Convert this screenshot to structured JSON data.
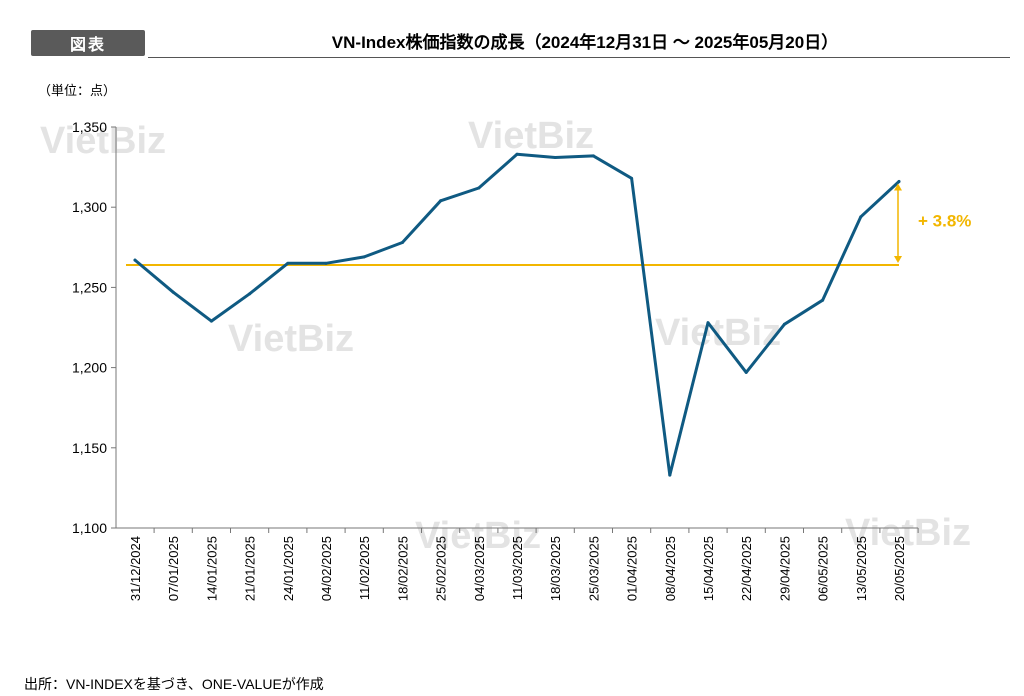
{
  "header": {
    "tag_label": "図表",
    "title": "VN-Index株価指数の成長（2024年12月31日 ～ 2025年05月20日）"
  },
  "unit_label": "（単位：点）",
  "source_label": "出所：VN-INDEXを基づき、ONE-VALUEが作成",
  "watermark_text": "VietBiz",
  "colors": {
    "line": "#0f5a82",
    "reference": "#f2b600",
    "tag_bg": "#5a5a5a"
  },
  "chart_data": {
    "type": "line",
    "title": "VN-Index株価指数の成長（2024年12月31日 ～ 2025年05月20日）",
    "ylabel": "（単位：点）",
    "xlabel": "",
    "ylim": [
      1100,
      1350
    ],
    "yticks": [
      1100,
      1150,
      1200,
      1250,
      1300,
      1350
    ],
    "ytick_labels": [
      "1,100",
      "1,150",
      "1,200",
      "1,250",
      "1,300",
      "1,350"
    ],
    "grid": false,
    "categories": [
      "31/12/2024",
      "07/01/2025",
      "14/01/2025",
      "21/01/2025",
      "24/01/2025",
      "04/02/2025",
      "11/02/2025",
      "18/02/2025",
      "25/02/2025",
      "04/03/2025",
      "11/03/2025",
      "18/03/2025",
      "25/03/2025",
      "01/04/2025",
      "08/04/2025",
      "15/04/2025",
      "22/04/2025",
      "29/04/2025",
      "06/05/2025",
      "13/05/2025",
      "20/05/2025"
    ],
    "series": [
      {
        "values": [
          1267,
          1247,
          1229,
          1246,
          1265,
          1265,
          1269,
          1278,
          1304,
          1312,
          1333,
          1331,
          1332,
          1318,
          1133,
          1228,
          1197,
          1227,
          1242,
          1294,
          1316
        ]
      }
    ],
    "reference_line": {
      "value": 1264
    },
    "annotation": {
      "text": "+ 3.8%"
    }
  }
}
